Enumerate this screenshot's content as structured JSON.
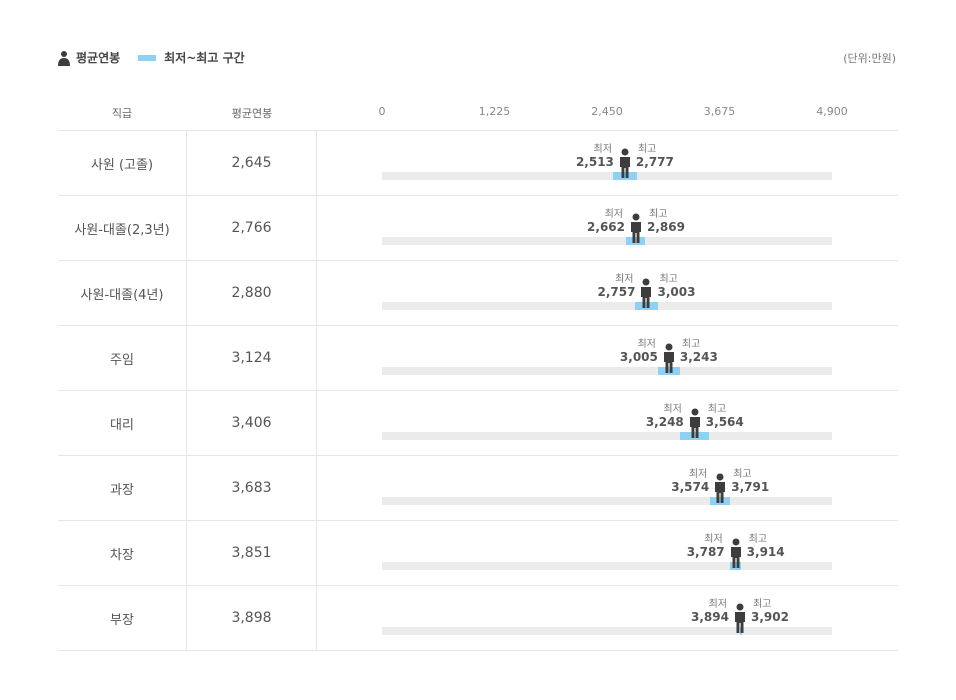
{
  "legend": {
    "avg_label": "평균연봉",
    "range_label": "최저~최고 구간",
    "range_color": "#8fd0f3",
    "icon_color": "#3d3d3d",
    "person_icon": "person-icon"
  },
  "unit_label": "(단위:만원)",
  "header": {
    "grade": "직급",
    "avg": "평균연봉"
  },
  "labels": {
    "min": "최저",
    "max": "최고"
  },
  "chart_data": {
    "type": "range",
    "xlim": [
      0,
      4900
    ],
    "ticks": [
      "0",
      "1,225",
      "2,450",
      "3,675",
      "4,900"
    ],
    "tick_values": [
      0,
      1225,
      2450,
      3675,
      4900
    ],
    "rows": [
      {
        "grade": "사원 (고졸)",
        "avg": 2645,
        "avg_text": "2,645",
        "min": 2513,
        "min_text": "2,513",
        "max": 2777,
        "max_text": "2,777"
      },
      {
        "grade": "사원-대졸(2,3년)",
        "avg": 2766,
        "avg_text": "2,766",
        "min": 2662,
        "min_text": "2,662",
        "max": 2869,
        "max_text": "2,869"
      },
      {
        "grade": "사원-대졸(4년)",
        "avg": 2880,
        "avg_text": "2,880",
        "min": 2757,
        "min_text": "2,757",
        "max": 3003,
        "max_text": "3,003"
      },
      {
        "grade": "주임",
        "avg": 3124,
        "avg_text": "3,124",
        "min": 3005,
        "min_text": "3,005",
        "max": 3243,
        "max_text": "3,243"
      },
      {
        "grade": "대리",
        "avg": 3406,
        "avg_text": "3,406",
        "min": 3248,
        "min_text": "3,248",
        "max": 3564,
        "max_text": "3,564"
      },
      {
        "grade": "과장",
        "avg": 3683,
        "avg_text": "3,683",
        "min": 3574,
        "min_text": "3,574",
        "max": 3791,
        "max_text": "3,791"
      },
      {
        "grade": "차장",
        "avg": 3851,
        "avg_text": "3,851",
        "min": 3787,
        "min_text": "3,787",
        "max": 3914,
        "max_text": "3,914"
      },
      {
        "grade": "부장",
        "avg": 3898,
        "avg_text": "3,898",
        "min": 3894,
        "min_text": "3,894",
        "max": 3902,
        "max_text": "3,902"
      }
    ]
  }
}
